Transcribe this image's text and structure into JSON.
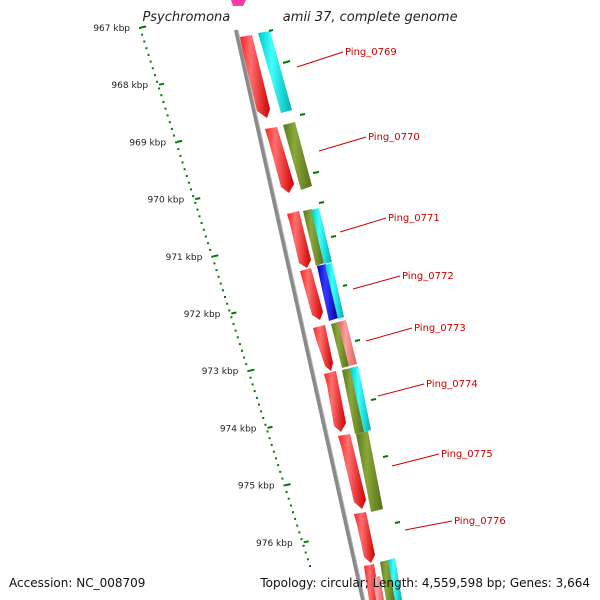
{
  "title": "Psychromonas ingrahamii 37, complete genome",
  "footer": {
    "accession": "Accession: NC_008709",
    "topology": "Topology: circular; Length: 4,559,598 bp; Genes: 3,664"
  },
  "scale": {
    "ticks": [
      "967 kbp",
      "968 kbp",
      "969 kbp",
      "970 kbp",
      "971 kbp",
      "972 kbp",
      "973 kbp",
      "974 kbp",
      "975 kbp",
      "976 kbp"
    ]
  },
  "genes": [
    {
      "label": "Ping_0769"
    },
    {
      "label": "Ping_0770"
    },
    {
      "label": "Ping_0771"
    },
    {
      "label": "Ping_0772"
    },
    {
      "label": "Ping_0773"
    },
    {
      "label": "Ping_0774"
    },
    {
      "label": "Ping_0775"
    },
    {
      "label": "Ping_0776"
    }
  ],
  "colors": {
    "cds": "#ff0000",
    "cog_cyan": "#00e0e0",
    "cog_olive": "#6b8e23",
    "cog_blue": "#0000ff",
    "cog_pink": "#f08080",
    "ticks": "#007a00",
    "labels": "#cc0000",
    "backbone": "#808080"
  }
}
